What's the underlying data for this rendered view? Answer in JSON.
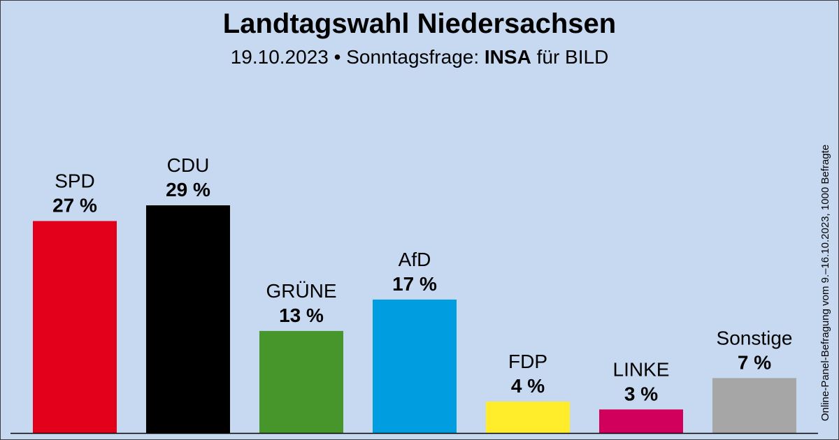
{
  "header": {
    "title": "Landtagswahl Niedersachsen",
    "subtitle_date": "19.10.2023 • Sonntagsfrage:",
    "subtitle_institute": "INSA",
    "subtitle_client": "für BILD"
  },
  "side_note": "Online-Panel-Befragung vom 9.–16.10.2023, 1000 Befragte",
  "chart_data": {
    "type": "bar",
    "title": "Landtagswahl Niedersachsen",
    "categories": [
      "SPD",
      "CDU",
      "GRÜNE",
      "AfD",
      "FDP",
      "LINKE",
      "Sonstige"
    ],
    "values": [
      27,
      29,
      13,
      17,
      4,
      3,
      7
    ],
    "value_labels": [
      "27 %",
      "29 %",
      "13 %",
      "17 %",
      "4 %",
      "3 %",
      "7 %"
    ],
    "colors": [
      "#e3001b",
      "#000000",
      "#46962b",
      "#009ee0",
      "#ffed2b",
      "#d1005c",
      "#a6a6a6"
    ],
    "ylim": [
      0,
      29
    ],
    "grid": false,
    "legend": "none"
  }
}
